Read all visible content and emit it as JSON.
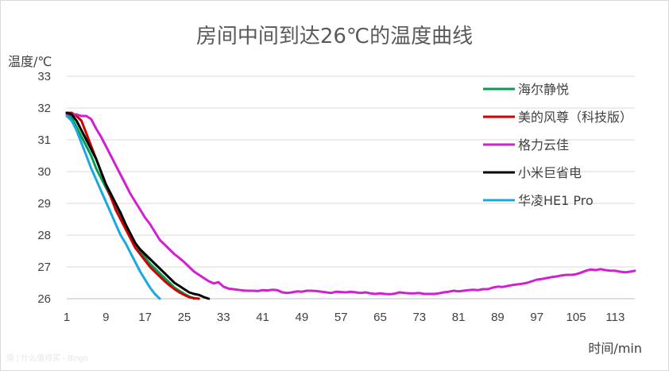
{
  "chart_data": {
    "type": "line",
    "title": "房间中间到达26℃的温度曲线",
    "ylabel": "温度/℃",
    "xlabel": "时间/min",
    "ylim": [
      26,
      33
    ],
    "xlim": [
      1,
      117
    ],
    "yticks": [
      26,
      27,
      28,
      29,
      30,
      31,
      32,
      33
    ],
    "xticks": [
      1,
      9,
      17,
      25,
      33,
      41,
      49,
      57,
      65,
      73,
      81,
      89,
      97,
      105,
      113
    ],
    "grid": "horizontal",
    "legend_position": "top-right",
    "series": [
      {
        "name": "海尔静悦",
        "color": "#00a050",
        "points": [
          [
            1,
            31.8
          ],
          [
            2,
            31.7
          ],
          [
            3,
            31.4
          ],
          [
            4,
            31.1
          ],
          [
            5,
            30.8
          ],
          [
            6,
            30.5
          ],
          [
            7,
            30.1
          ],
          [
            8,
            29.8
          ],
          [
            9,
            29.5
          ],
          [
            10,
            29.2
          ],
          [
            11,
            28.9
          ],
          [
            12,
            28.6
          ],
          [
            13,
            28.3
          ],
          [
            14,
            28.0
          ],
          [
            15,
            27.7
          ],
          [
            16,
            27.5
          ],
          [
            17,
            27.3
          ],
          [
            18,
            27.1
          ],
          [
            19,
            26.95
          ],
          [
            20,
            26.8
          ],
          [
            21,
            26.65
          ],
          [
            22,
            26.5
          ],
          [
            23,
            26.35
          ],
          [
            24,
            26.25
          ],
          [
            25,
            26.15
          ],
          [
            26,
            26.07
          ],
          [
            27,
            26.0
          ]
        ]
      },
      {
        "name": "美的风尊（科技版）",
        "color": "#d00000",
        "points": [
          [
            1,
            31.85
          ],
          [
            2,
            31.85
          ],
          [
            3,
            31.75
          ],
          [
            4,
            31.6
          ],
          [
            5,
            31.2
          ],
          [
            6,
            30.8
          ],
          [
            7,
            30.4
          ],
          [
            8,
            30.0
          ],
          [
            9,
            29.6
          ],
          [
            10,
            29.2
          ],
          [
            11,
            28.8
          ],
          [
            12,
            28.5
          ],
          [
            13,
            28.2
          ],
          [
            14,
            27.9
          ],
          [
            15,
            27.6
          ],
          [
            16,
            27.4
          ],
          [
            17,
            27.2
          ],
          [
            18,
            27.0
          ],
          [
            19,
            26.85
          ],
          [
            20,
            26.7
          ],
          [
            21,
            26.55
          ],
          [
            22,
            26.42
          ],
          [
            23,
            26.3
          ],
          [
            24,
            26.2
          ],
          [
            25,
            26.12
          ],
          [
            26,
            26.05
          ],
          [
            27,
            26.02
          ],
          [
            28,
            26.0
          ]
        ]
      },
      {
        "name": "格力云佳",
        "color": "#d020d0",
        "points": [
          [
            1,
            31.8
          ],
          [
            2,
            31.8
          ],
          [
            3,
            31.8
          ],
          [
            4,
            31.75
          ],
          [
            5,
            31.75
          ],
          [
            6,
            31.65
          ],
          [
            7,
            31.35
          ],
          [
            8,
            31.1
          ],
          [
            9,
            30.8
          ],
          [
            10,
            30.5
          ],
          [
            11,
            30.2
          ],
          [
            12,
            29.9
          ],
          [
            13,
            29.6
          ],
          [
            14,
            29.3
          ],
          [
            15,
            29.05
          ],
          [
            16,
            28.8
          ],
          [
            17,
            28.55
          ],
          [
            18,
            28.35
          ],
          [
            19,
            28.1
          ],
          [
            20,
            27.85
          ],
          [
            21,
            27.7
          ],
          [
            22,
            27.55
          ],
          [
            23,
            27.4
          ],
          [
            24,
            27.28
          ],
          [
            25,
            27.15
          ],
          [
            26,
            27.0
          ],
          [
            27,
            26.85
          ],
          [
            28,
            26.75
          ],
          [
            29,
            26.65
          ],
          [
            30,
            26.55
          ],
          [
            31,
            26.48
          ],
          [
            32,
            26.52
          ],
          [
            33,
            26.38
          ],
          [
            34,
            26.32
          ],
          [
            35,
            26.3
          ],
          [
            36,
            26.28
          ],
          [
            37,
            26.26
          ],
          [
            38,
            26.25
          ],
          [
            39,
            26.25
          ],
          [
            40,
            26.24
          ],
          [
            41,
            26.27
          ],
          [
            42,
            26.26
          ],
          [
            43,
            26.28
          ],
          [
            44,
            26.27
          ],
          [
            45,
            26.2
          ],
          [
            46,
            26.18
          ],
          [
            47,
            26.2
          ],
          [
            48,
            26.23
          ],
          [
            49,
            26.22
          ],
          [
            50,
            26.25
          ],
          [
            51,
            26.25
          ],
          [
            52,
            26.24
          ],
          [
            53,
            26.22
          ],
          [
            54,
            26.2
          ],
          [
            55,
            26.18
          ],
          [
            56,
            26.22
          ],
          [
            57,
            26.21
          ],
          [
            58,
            26.2
          ],
          [
            59,
            26.22
          ],
          [
            60,
            26.2
          ],
          [
            61,
            26.18
          ],
          [
            62,
            26.2
          ],
          [
            63,
            26.17
          ],
          [
            64,
            26.15
          ],
          [
            65,
            26.17
          ],
          [
            66,
            26.15
          ],
          [
            67,
            26.14
          ],
          [
            68,
            26.16
          ],
          [
            69,
            26.2
          ],
          [
            70,
            26.18
          ],
          [
            71,
            26.17
          ],
          [
            72,
            26.17
          ],
          [
            73,
            26.18
          ],
          [
            74,
            26.15
          ],
          [
            75,
            26.15
          ],
          [
            76,
            26.15
          ],
          [
            77,
            26.17
          ],
          [
            78,
            26.2
          ],
          [
            79,
            26.22
          ],
          [
            80,
            26.25
          ],
          [
            81,
            26.23
          ],
          [
            82,
            26.25
          ],
          [
            83,
            26.27
          ],
          [
            84,
            26.28
          ],
          [
            85,
            26.27
          ],
          [
            86,
            26.3
          ],
          [
            87,
            26.3
          ],
          [
            88,
            26.35
          ],
          [
            89,
            26.38
          ],
          [
            90,
            26.37
          ],
          [
            91,
            26.4
          ],
          [
            92,
            26.43
          ],
          [
            93,
            26.45
          ],
          [
            94,
            26.47
          ],
          [
            95,
            26.5
          ],
          [
            96,
            26.55
          ],
          [
            97,
            26.6
          ],
          [
            98,
            26.62
          ],
          [
            99,
            26.65
          ],
          [
            100,
            26.68
          ],
          [
            101,
            26.7
          ],
          [
            102,
            26.73
          ],
          [
            103,
            26.75
          ],
          [
            104,
            26.75
          ],
          [
            105,
            26.77
          ],
          [
            106,
            26.82
          ],
          [
            107,
            26.88
          ],
          [
            108,
            26.92
          ],
          [
            109,
            26.9
          ],
          [
            110,
            26.93
          ],
          [
            111,
            26.9
          ],
          [
            112,
            26.88
          ],
          [
            113,
            26.88
          ],
          [
            114,
            26.85
          ],
          [
            115,
            26.83
          ],
          [
            116,
            26.85
          ],
          [
            117,
            26.88
          ]
        ]
      },
      {
        "name": "小米巨省电",
        "color": "#000000",
        "points": [
          [
            1,
            31.85
          ],
          [
            2,
            31.8
          ],
          [
            3,
            31.6
          ],
          [
            4,
            31.3
          ],
          [
            5,
            31.0
          ],
          [
            6,
            30.7
          ],
          [
            7,
            30.4
          ],
          [
            8,
            30.0
          ],
          [
            9,
            29.6
          ],
          [
            10,
            29.3
          ],
          [
            11,
            29.0
          ],
          [
            12,
            28.7
          ],
          [
            13,
            28.35
          ],
          [
            14,
            28.05
          ],
          [
            15,
            27.75
          ],
          [
            16,
            27.55
          ],
          [
            17,
            27.4
          ],
          [
            18,
            27.25
          ],
          [
            19,
            27.1
          ],
          [
            20,
            26.95
          ],
          [
            21,
            26.8
          ],
          [
            22,
            26.65
          ],
          [
            23,
            26.5
          ],
          [
            24,
            26.4
          ],
          [
            25,
            26.3
          ],
          [
            26,
            26.2
          ],
          [
            27,
            26.15
          ],
          [
            28,
            26.12
          ],
          [
            29,
            26.05
          ],
          [
            30,
            26.0
          ]
        ]
      },
      {
        "name": "华凌HE1 Pro",
        "color": "#1ba8e0",
        "points": [
          [
            1,
            31.75
          ],
          [
            2,
            31.6
          ],
          [
            3,
            31.3
          ],
          [
            4,
            30.9
          ],
          [
            5,
            30.5
          ],
          [
            6,
            30.1
          ],
          [
            7,
            29.75
          ],
          [
            8,
            29.4
          ],
          [
            9,
            29.05
          ],
          [
            10,
            28.7
          ],
          [
            11,
            28.35
          ],
          [
            12,
            28.0
          ],
          [
            13,
            27.75
          ],
          [
            14,
            27.45
          ],
          [
            15,
            27.15
          ],
          [
            16,
            26.85
          ],
          [
            17,
            26.6
          ],
          [
            18,
            26.35
          ],
          [
            19,
            26.15
          ],
          [
            20,
            26.0
          ]
        ]
      }
    ]
  },
  "watermark": "值 | 什么值得买 - Bingo"
}
